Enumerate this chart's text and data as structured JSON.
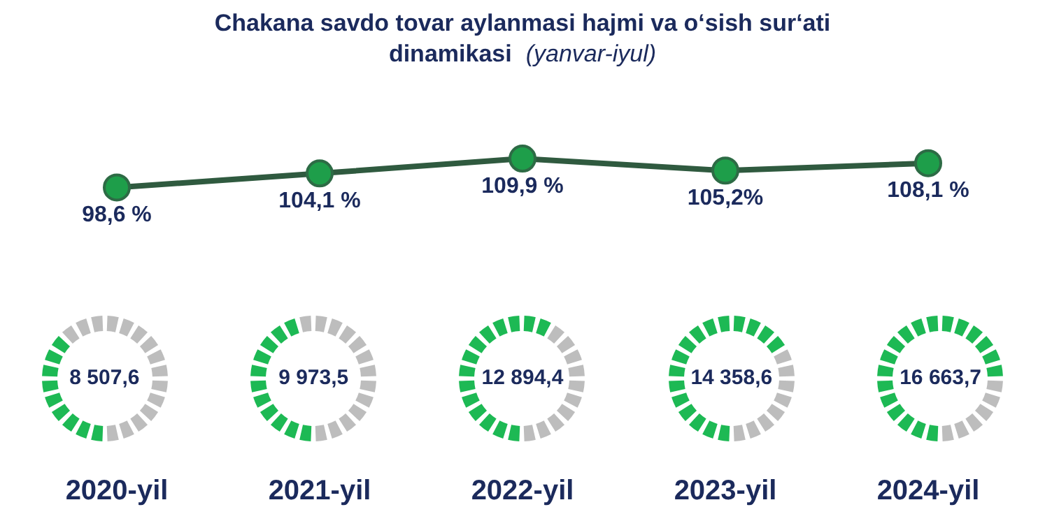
{
  "chart_data": [
    {
      "type": "line",
      "title": "Chakana savdo tovar aylanmasi hajmi va o‘sish sur‘ati dinamikasi",
      "subtitle": "(yanvar-iyul)",
      "categories": [
        "2020-yil",
        "2021-yil",
        "2022-yil",
        "2023-yil",
        "2024-yil"
      ],
      "marker": "circle",
      "line_style": "solid",
      "legend": false,
      "series": [
        {
          "color": "#1e9e4a",
          "values": [
            98.6,
            104.1,
            109.9,
            105.2,
            108.1
          ],
          "value_labels": [
            "98,6 %",
            "104,1 %",
            "109,9 %",
            "105,2%",
            "108,1 %"
          ]
        }
      ]
    },
    {
      "type": "other",
      "values": [
        8507.6,
        9973.5,
        12894.4,
        14358.6,
        16663.7
      ],
      "value_labels": [
        "8 507,6",
        "9 973,5",
        "12 894,4",
        "14 358,6",
        "16 663,7"
      ]
    }
  ]
}
